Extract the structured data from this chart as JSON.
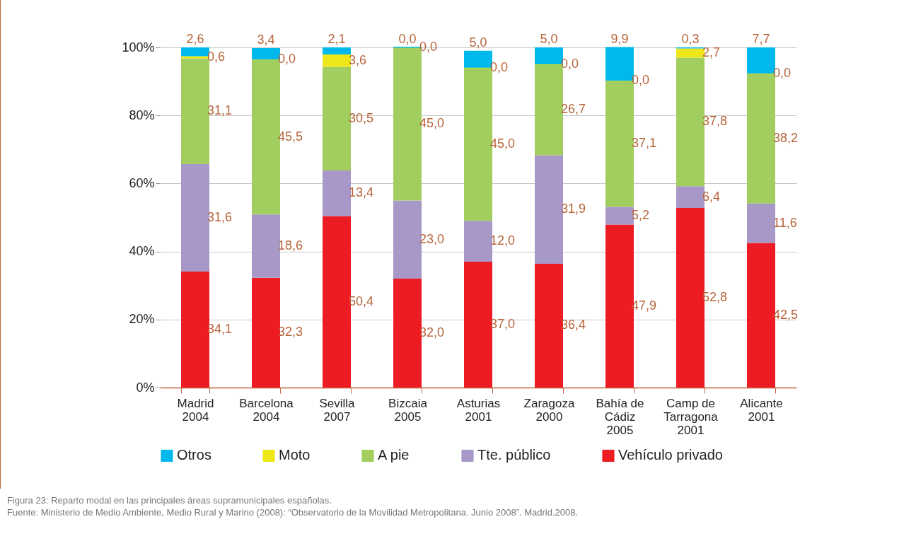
{
  "chart_data": {
    "type": "bar",
    "stacked": true,
    "categories": [
      "Madrid\n2004",
      "Barcelona\n2004",
      "Sevilla\n2007",
      "Bizcaia\n2005",
      "Asturias\n2001",
      "Zaragoza\n2000",
      "Bahía de\nCádiz\n2005",
      "Camp de\nTarragona\n2001",
      "Alicante\n2001"
    ],
    "series": [
      {
        "name": "Vehículo privado",
        "color": "#ed1c24",
        "values": [
          34.1,
          32.3,
          50.4,
          32.0,
          37.0,
          36.4,
          47.9,
          52.8,
          42.5
        ],
        "value_labels": [
          "34,1",
          "32,3",
          "50,4",
          "32,0",
          "37,0",
          "36,4",
          "47,9",
          "52,8",
          "42,5"
        ]
      },
      {
        "name": "Tte. público",
        "color": "#a898c8",
        "values": [
          31.6,
          18.6,
          13.4,
          23.0,
          12.0,
          31.9,
          5.2,
          6.4,
          11.6
        ],
        "value_labels": [
          "31,6",
          "18,6",
          "13,4",
          "23,0",
          "12,0",
          "31,9",
          "5,2",
          "6,4",
          "11,6"
        ]
      },
      {
        "name": "A pie",
        "color": "#a2cd5f",
        "values": [
          31.1,
          45.5,
          30.5,
          45.0,
          45.0,
          26.7,
          37.1,
          37.8,
          38.2
        ],
        "value_labels": [
          "31,1",
          "45,5",
          "30,5",
          "45,0",
          "45,0",
          "26,7",
          "37,1",
          "37,8",
          "38,2"
        ]
      },
      {
        "name": "Moto",
        "color": "#ede619",
        "values": [
          0.6,
          0.0,
          3.6,
          0.0,
          0.0,
          0.0,
          0.0,
          2.7,
          0.0
        ],
        "value_labels": [
          "0,6",
          "0,0",
          "3,6",
          "0,0",
          "0,0",
          "0,0",
          "0,0",
          "2,7",
          "0,0"
        ]
      },
      {
        "name": "Otros",
        "color": "#00b9ec",
        "values": [
          2.6,
          3.4,
          2.1,
          0.0,
          5.0,
          5.0,
          9.9,
          0.3,
          7.7
        ],
        "value_labels": [
          "2,6",
          "3,4",
          "2,1",
          "0,0",
          "5,0",
          "5,0",
          "9,9",
          "0,3",
          "7,7"
        ]
      }
    ],
    "ylim": [
      0,
      100
    ],
    "yticks": [
      {
        "value": 0,
        "label": "0%"
      },
      {
        "value": 20,
        "label": "20%"
      },
      {
        "value": 40,
        "label": "40%"
      },
      {
        "value": 60,
        "label": "60%"
      },
      {
        "value": 80,
        "label": "80%"
      },
      {
        "value": 100,
        "label": "100%"
      }
    ],
    "grid": "y",
    "legend": "bottom",
    "annotations": [
      "Figura 23: Reparto modal en las principales áreas supramunicipales españolas.",
      "Fuente: Ministerio de Medio Ambiente, Medio Rural y Marino (2008): “Observatorio de la Movilidad Metropolitana. Junio 2008”. Madrid.2008."
    ]
  }
}
